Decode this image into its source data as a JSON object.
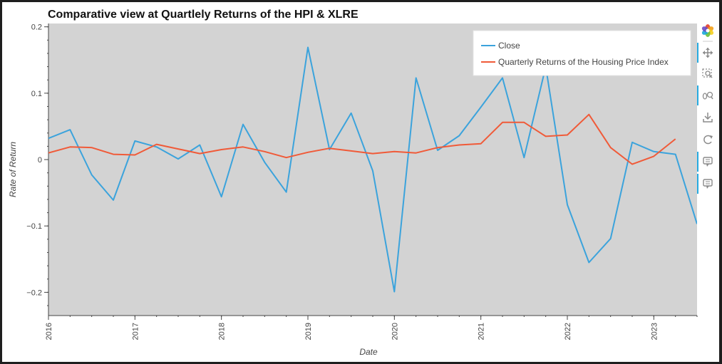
{
  "chart_data": {
    "type": "line",
    "title": "Comparative view at Quartlely Returns of the HPI & XLRE",
    "xlabel": "Date",
    "ylabel": "Rate of Return",
    "xlim": [
      2016.0,
      2023.5
    ],
    "ylim": [
      -0.235,
      0.205
    ],
    "x_ticks": [
      "2016",
      "2017",
      "2018",
      "2019",
      "2020",
      "2021",
      "2022",
      "2023"
    ],
    "y_ticks": [
      {
        "value": 0.2,
        "label": "0.2"
      },
      {
        "value": 0.1,
        "label": "0.1"
      },
      {
        "value": 0,
        "label": "0"
      },
      {
        "value": -0.1,
        "label": "−0.1"
      },
      {
        "value": -0.2,
        "label": "−0.2"
      }
    ],
    "grid": false,
    "legend_position": "top-right",
    "series": [
      {
        "name": "Close",
        "color": "#3ba3dc",
        "x": [
          2016.0,
          2016.25,
          2016.5,
          2016.75,
          2017.0,
          2017.25,
          2017.5,
          2017.75,
          2018.0,
          2018.25,
          2018.5,
          2018.75,
          2019.0,
          2019.25,
          2019.5,
          2019.75,
          2020.0,
          2020.25,
          2020.5,
          2020.75,
          2021.0,
          2021.25,
          2021.5,
          2021.75,
          2022.0,
          2022.25,
          2022.5,
          2022.75,
          2023.0,
          2023.25,
          2023.5
        ],
        "y": [
          0.032,
          0.045,
          -0.023,
          -0.061,
          0.028,
          0.019,
          0.001,
          0.022,
          -0.056,
          0.053,
          -0.004,
          -0.049,
          0.169,
          0.015,
          0.07,
          -0.017,
          -0.199,
          0.123,
          0.014,
          0.036,
          0.079,
          0.123,
          0.003,
          0.14,
          -0.068,
          -0.155,
          -0.119,
          0.026,
          0.012,
          0.008,
          -0.097
        ]
      },
      {
        "name": "Quarterly Returns of the Housing Price Index",
        "color": "#f05a38",
        "x": [
          2016.0,
          2016.25,
          2016.5,
          2016.75,
          2017.0,
          2017.25,
          2017.5,
          2017.75,
          2018.0,
          2018.25,
          2018.5,
          2018.75,
          2019.0,
          2019.25,
          2019.5,
          2019.75,
          2020.0,
          2020.25,
          2020.5,
          2020.75,
          2021.0,
          2021.25,
          2021.5,
          2021.75,
          2022.0,
          2022.25,
          2022.5,
          2022.75,
          2023.0,
          2023.25
        ],
        "y": [
          0.01,
          0.019,
          0.018,
          0.008,
          0.007,
          0.023,
          0.016,
          0.009,
          0.015,
          0.019,
          0.012,
          0.003,
          0.011,
          0.017,
          0.013,
          0.009,
          0.012,
          0.01,
          0.018,
          0.022,
          0.024,
          0.056,
          0.056,
          0.035,
          0.037,
          0.068,
          0.018,
          -0.007,
          0.005,
          0.031
        ]
      }
    ]
  },
  "toolbar": {
    "items": [
      {
        "name": "bokeh-logo-icon",
        "interactable": false
      },
      {
        "name": "pan-icon",
        "interactable": true,
        "active": true
      },
      {
        "name": "box-zoom-icon",
        "interactable": true,
        "active": false
      },
      {
        "name": "wheel-zoom-icon",
        "interactable": true,
        "active": true
      },
      {
        "name": "save-icon",
        "interactable": true,
        "active": false
      },
      {
        "name": "reset-icon",
        "interactable": true,
        "active": false
      },
      {
        "name": "hover-close-icon",
        "interactable": true,
        "active": true
      },
      {
        "name": "hover-hpi-icon",
        "interactable": true,
        "active": true
      }
    ],
    "active_color": "#26aae1"
  },
  "colors": {
    "plot_background": "#d3d3d3",
    "page_background": "#1e1e1e",
    "axis": "#444444"
  }
}
